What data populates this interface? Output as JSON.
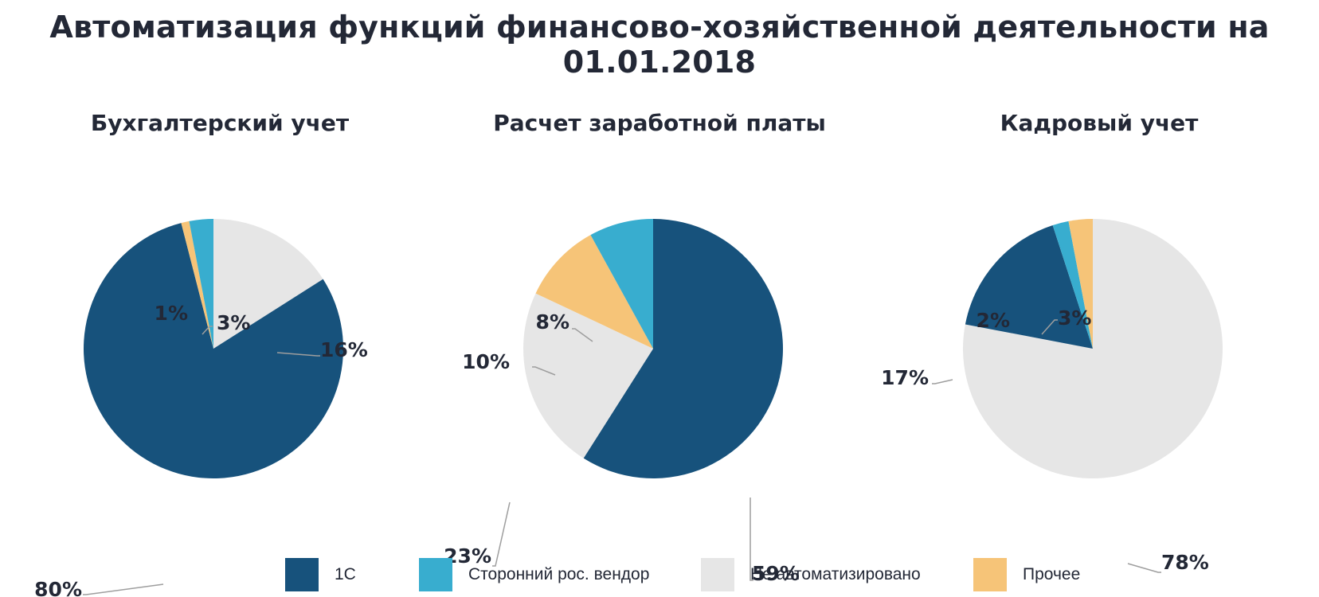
{
  "title": "Автоматизация функций финансово-хозяйственной деятельности на 01.01.2018",
  "chart_data": [
    {
      "type": "pie",
      "title": "Бухгалтерский учет",
      "slices": [
        {
          "category": "Не автоматизировано",
          "value": 16,
          "label": "16%"
        },
        {
          "category": "1С",
          "value": 80,
          "label": "80%"
        },
        {
          "category": "Прочее",
          "value": 1,
          "label": "1%"
        },
        {
          "category": "Сторонний рос. вендор",
          "value": 3,
          "label": "3%"
        }
      ]
    },
    {
      "type": "pie",
      "title": "Расчет заработной платы",
      "slices": [
        {
          "category": "1С",
          "value": 59,
          "label": "59%"
        },
        {
          "category": "Не автоматизировано",
          "value": 23,
          "label": "23%"
        },
        {
          "category": "Прочее",
          "value": 10,
          "label": "10%"
        },
        {
          "category": "Сторонний рос. вендор",
          "value": 8,
          "label": "8%"
        }
      ]
    },
    {
      "type": "pie",
      "title": "Кадровый учет",
      "slices": [
        {
          "category": "Не автоматизировано",
          "value": 78,
          "label": "78%"
        },
        {
          "category": "1С",
          "value": 17,
          "label": "17%"
        },
        {
          "category": "Сторонний рос. вендор",
          "value": 2,
          "label": "2%"
        },
        {
          "category": "Прочее",
          "value": 3,
          "label": "3%"
        }
      ]
    }
  ],
  "legend": [
    {
      "label": "1С",
      "color": "#17527c"
    },
    {
      "label": "Сторонний рос. вендор",
      "color": "#38adcf"
    },
    {
      "label": "Не автоматизировано",
      "color": "#e6e6e6"
    },
    {
      "label": "Прочее",
      "color": "#f6c478"
    }
  ],
  "leader_line_color": "#9e9e9e"
}
